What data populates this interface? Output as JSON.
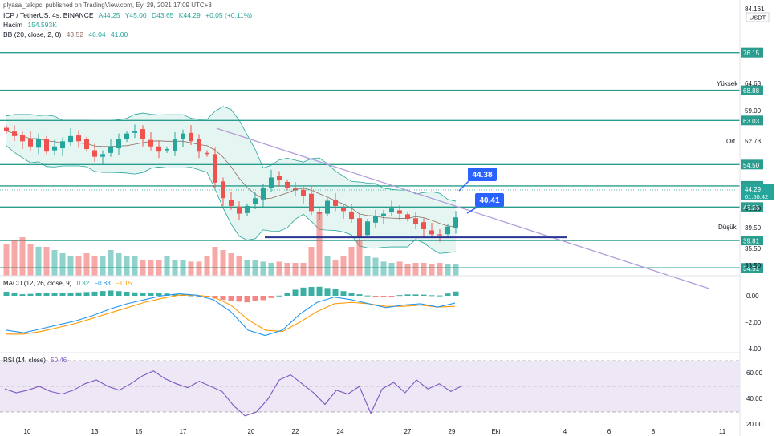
{
  "header": {
    "publisher": "plyasa_takipci published on TradingView.com, Eyl 29, 2021 17:09 UTC+3",
    "symbol_line": {
      "symbol": "ICP / TetherUS, 4s, BINANCE",
      "open": "A44.25",
      "high": "Y45.00",
      "low": "D43.65",
      "close": "K44.29",
      "change": "+0.05 (+0.11%)"
    },
    "volume_line": {
      "label": "Hacim",
      "value": "154.593K"
    },
    "bb_line": {
      "label": "BB (20, close, 2, 0)",
      "basis": "43.52",
      "upper": "46.04",
      "lower": "41.00"
    }
  },
  "price_axis": {
    "top_label": "84.161",
    "currency": "USDT",
    "ticks": [
      "64.63",
      "59.00",
      "52.73",
      "41.00",
      "39.50",
      "35.50",
      "33.50"
    ],
    "level_badges": [
      "76.15",
      "68.88",
      "63.03",
      "54.50",
      "50.38",
      "46.28",
      "39.81",
      "34.51"
    ],
    "current_price": "44.29",
    "countdown": "01:50:42",
    "side_labels": {
      "high": "Yüksek",
      "mid": "Ort",
      "low": "Düşük"
    }
  },
  "annotations": {
    "upper_callout": "44.38",
    "lower_callout": "40.41"
  },
  "macd_pane": {
    "label": "MACD (12, 26, close, 9)",
    "values": [
      "0.32",
      "−0.83",
      "−1.15"
    ],
    "ticks": [
      "0.00",
      "−2.00",
      "−4.00"
    ]
  },
  "rsi_pane": {
    "label": "RSI (14, close)",
    "value": "50.46",
    "ticks": [
      "60.00",
      "40.00",
      "20.00"
    ]
  },
  "x_axis": {
    "ticks": [
      "10",
      "13",
      "15",
      "17",
      "20",
      "22",
      "24",
      "27",
      "29",
      "Eki",
      "4",
      "6",
      "8",
      "11"
    ]
  },
  "colors": {
    "up": "#26a69a",
    "down": "#ef5350",
    "levels": "#2a9d8f",
    "trendline": "#b39ddb",
    "support": "#283593",
    "callout": "#2962ff",
    "bb_fill": "#d4efe9",
    "basis": "#8d6e63",
    "macd": "#2196f3",
    "signal": "#ff9800",
    "rsi": "#7e57c2",
    "rsi_band": "#ede7f6"
  },
  "chart_data": {
    "type": "candlestick",
    "title": "ICP / TetherUS, 4s, BINANCE",
    "ylim": [
      33.0,
      84.161
    ],
    "horizontal_levels": [
      76.15,
      68.88,
      63.03,
      54.5,
      50.38,
      46.28,
      39.81,
      34.51
    ],
    "support_line": 39.81,
    "trendline": {
      "from_price": 61.5,
      "to_price": 30.5,
      "direction": "descending"
    },
    "callouts": [
      44.38,
      40.41
    ],
    "last_close": 44.29,
    "close_path": [
      61,
      60,
      59,
      58,
      59.5,
      57,
      58,
      59,
      60,
      59,
      57.5,
      56,
      56.5,
      58,
      59.5,
      60.5,
      61,
      59.5,
      58,
      57,
      57.5,
      59.5,
      60.5,
      59,
      57,
      56.5,
      51,
      48,
      46.5,
      45,
      46.5,
      48,
      50,
      52,
      51.5,
      50,
      49.5,
      48.5,
      45.5,
      45,
      47.5,
      46.5,
      45.5,
      44,
      40.5,
      43.5,
      44.5,
      45,
      46,
      45,
      44,
      43,
      42,
      41,
      40.8,
      42.5,
      44.29
    ],
    "volume_profile": [
      0.5,
      0.55,
      0.6,
      0.5,
      0.45,
      0.45,
      0.4,
      0.35,
      0.3,
      0.3,
      0.35,
      0.3,
      0.3,
      0.4,
      0.35,
      0.3,
      0.3,
      0.25,
      0.25,
      0.25,
      0.3,
      0.25,
      0.25,
      0.22,
      0.22,
      0.3,
      0.45,
      0.4,
      0.35,
      0.3,
      0.25,
      0.25,
      0.22,
      0.2,
      0.22,
      0.2,
      0.2,
      0.2,
      0.45,
      1.0,
      0.3,
      0.25,
      0.3,
      0.45,
      0.55,
      0.3,
      0.28,
      0.22,
      0.2,
      0.22,
      0.18,
      0.2,
      0.2,
      0.18,
      0.2,
      0.18,
      0.18
    ],
    "macd_path": [
      -2.6,
      -2.8,
      -2.5,
      -2.2,
      -1.9,
      -1.5,
      -1.0,
      -0.6,
      -0.3,
      0.0,
      0.15,
      0.05,
      -0.3,
      -1.2,
      -2.6,
      -3.0,
      -2.6,
      -1.4,
      -0.5,
      -0.1,
      -0.3,
      -0.6,
      -0.9,
      -0.7,
      -0.6,
      -0.85,
      -0.55
    ],
    "signal_path": [
      -2.9,
      -2.9,
      -2.7,
      -2.4,
      -2.1,
      -1.7,
      -1.3,
      -0.9,
      -0.5,
      -0.2,
      0.05,
      0.05,
      -0.1,
      -0.7,
      -1.8,
      -2.6,
      -2.7,
      -2.0,
      -1.2,
      -0.6,
      -0.5,
      -0.6,
      -0.8,
      -0.8,
      -0.7,
      -0.85,
      -0.8
    ],
    "macd_hist": [
      0.3,
      0.1,
      0.2,
      0.2,
      0.25,
      0.3,
      0.4,
      0.3,
      0.2,
      0.2,
      0.1,
      0.0,
      -0.2,
      -0.4,
      -0.5,
      -0.3,
      0.1,
      0.6,
      0.7,
      0.5,
      0.2,
      0.0,
      -0.1,
      0.1,
      0.1,
      0.0,
      0.32
    ],
    "rsi_path": [
      48,
      45,
      47,
      50,
      46,
      44,
      47,
      52,
      55,
      50,
      47,
      52,
      58,
      62,
      56,
      52,
      49,
      54,
      50,
      46,
      35,
      27,
      30,
      40,
      55,
      59,
      52,
      45,
      36,
      47,
      44,
      50,
      29,
      48,
      53,
      45,
      55,
      48,
      52,
      46,
      50.46
    ]
  }
}
